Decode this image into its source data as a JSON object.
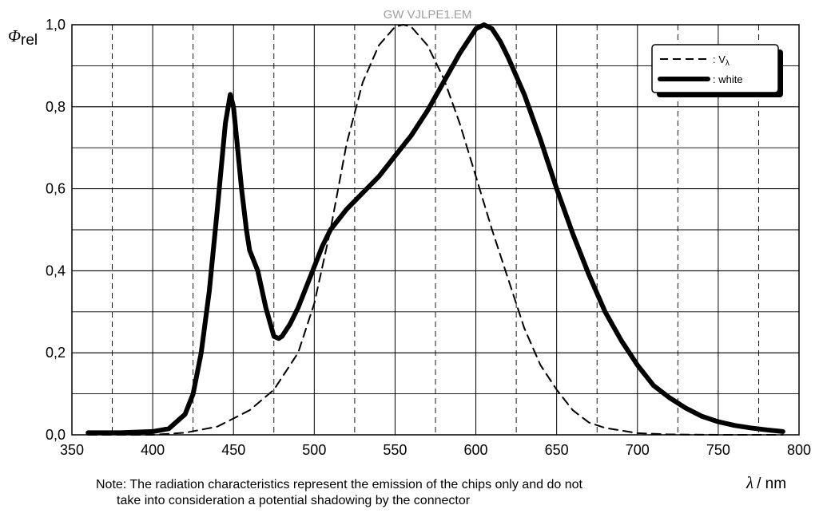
{
  "chart_data": {
    "type": "line",
    "title": "GW VJLPE1.EM",
    "xlabel_symbol": "λ",
    "xlabel_unit": "/ nm",
    "ylabel_symbol": "Φ",
    "ylabel_sub": "rel",
    "xlim": [
      350,
      800
    ],
    "ylim": [
      0,
      1.0
    ],
    "x_ticks": [
      "350",
      "400",
      "450",
      "500",
      "550",
      "600",
      "650",
      "700",
      "750",
      "800"
    ],
    "y_ticks": [
      "0,0",
      "0,2",
      "0,4",
      "0,6",
      "0,8",
      "1,0"
    ],
    "grid": true,
    "legend_position": "top-right",
    "series": [
      {
        "name": ": V",
        "name_sub": "λ",
        "style": "dashed",
        "x": [
          360,
          400,
          420,
          440,
          460,
          475,
          490,
          500,
          510,
          520,
          530,
          540,
          550,
          555,
          560,
          570,
          580,
          590,
          600,
          610,
          620,
          630,
          640,
          650,
          660,
          670,
          680,
          700,
          720,
          750,
          790
        ],
        "y": [
          0.0,
          0.0,
          0.005,
          0.02,
          0.06,
          0.11,
          0.2,
          0.32,
          0.5,
          0.71,
          0.86,
          0.95,
          0.995,
          1.0,
          0.995,
          0.95,
          0.87,
          0.76,
          0.63,
          0.5,
          0.38,
          0.26,
          0.17,
          0.11,
          0.06,
          0.03,
          0.017,
          0.004,
          0.001,
          0.0,
          0.0
        ]
      },
      {
        "name": ": white",
        "style": "solid",
        "x": [
          360,
          380,
          400,
          410,
          420,
          425,
          430,
          435,
          440,
          445,
          448,
          450,
          452,
          455,
          458,
          460,
          465,
          470,
          475,
          478,
          480,
          485,
          490,
          495,
          500,
          505,
          510,
          520,
          530,
          540,
          550,
          560,
          570,
          580,
          590,
          600,
          605,
          610,
          615,
          620,
          630,
          640,
          650,
          660,
          670,
          680,
          690,
          700,
          710,
          720,
          730,
          740,
          750,
          760,
          770,
          780,
          790
        ],
        "y": [
          0.005,
          0.005,
          0.008,
          0.015,
          0.05,
          0.1,
          0.2,
          0.35,
          0.55,
          0.76,
          0.83,
          0.8,
          0.72,
          0.6,
          0.5,
          0.45,
          0.4,
          0.31,
          0.24,
          0.235,
          0.24,
          0.27,
          0.31,
          0.36,
          0.41,
          0.46,
          0.5,
          0.55,
          0.59,
          0.63,
          0.68,
          0.73,
          0.79,
          0.86,
          0.93,
          0.99,
          1.0,
          0.99,
          0.96,
          0.92,
          0.83,
          0.72,
          0.6,
          0.49,
          0.39,
          0.3,
          0.23,
          0.17,
          0.12,
          0.09,
          0.065,
          0.045,
          0.032,
          0.023,
          0.017,
          0.012,
          0.008
        ]
      }
    ]
  },
  "note": {
    "line1": "Note: The radiation characteristics represent the emission of the chips only and do not",
    "line2": "take into consideration a potential shadowing by the connector"
  }
}
